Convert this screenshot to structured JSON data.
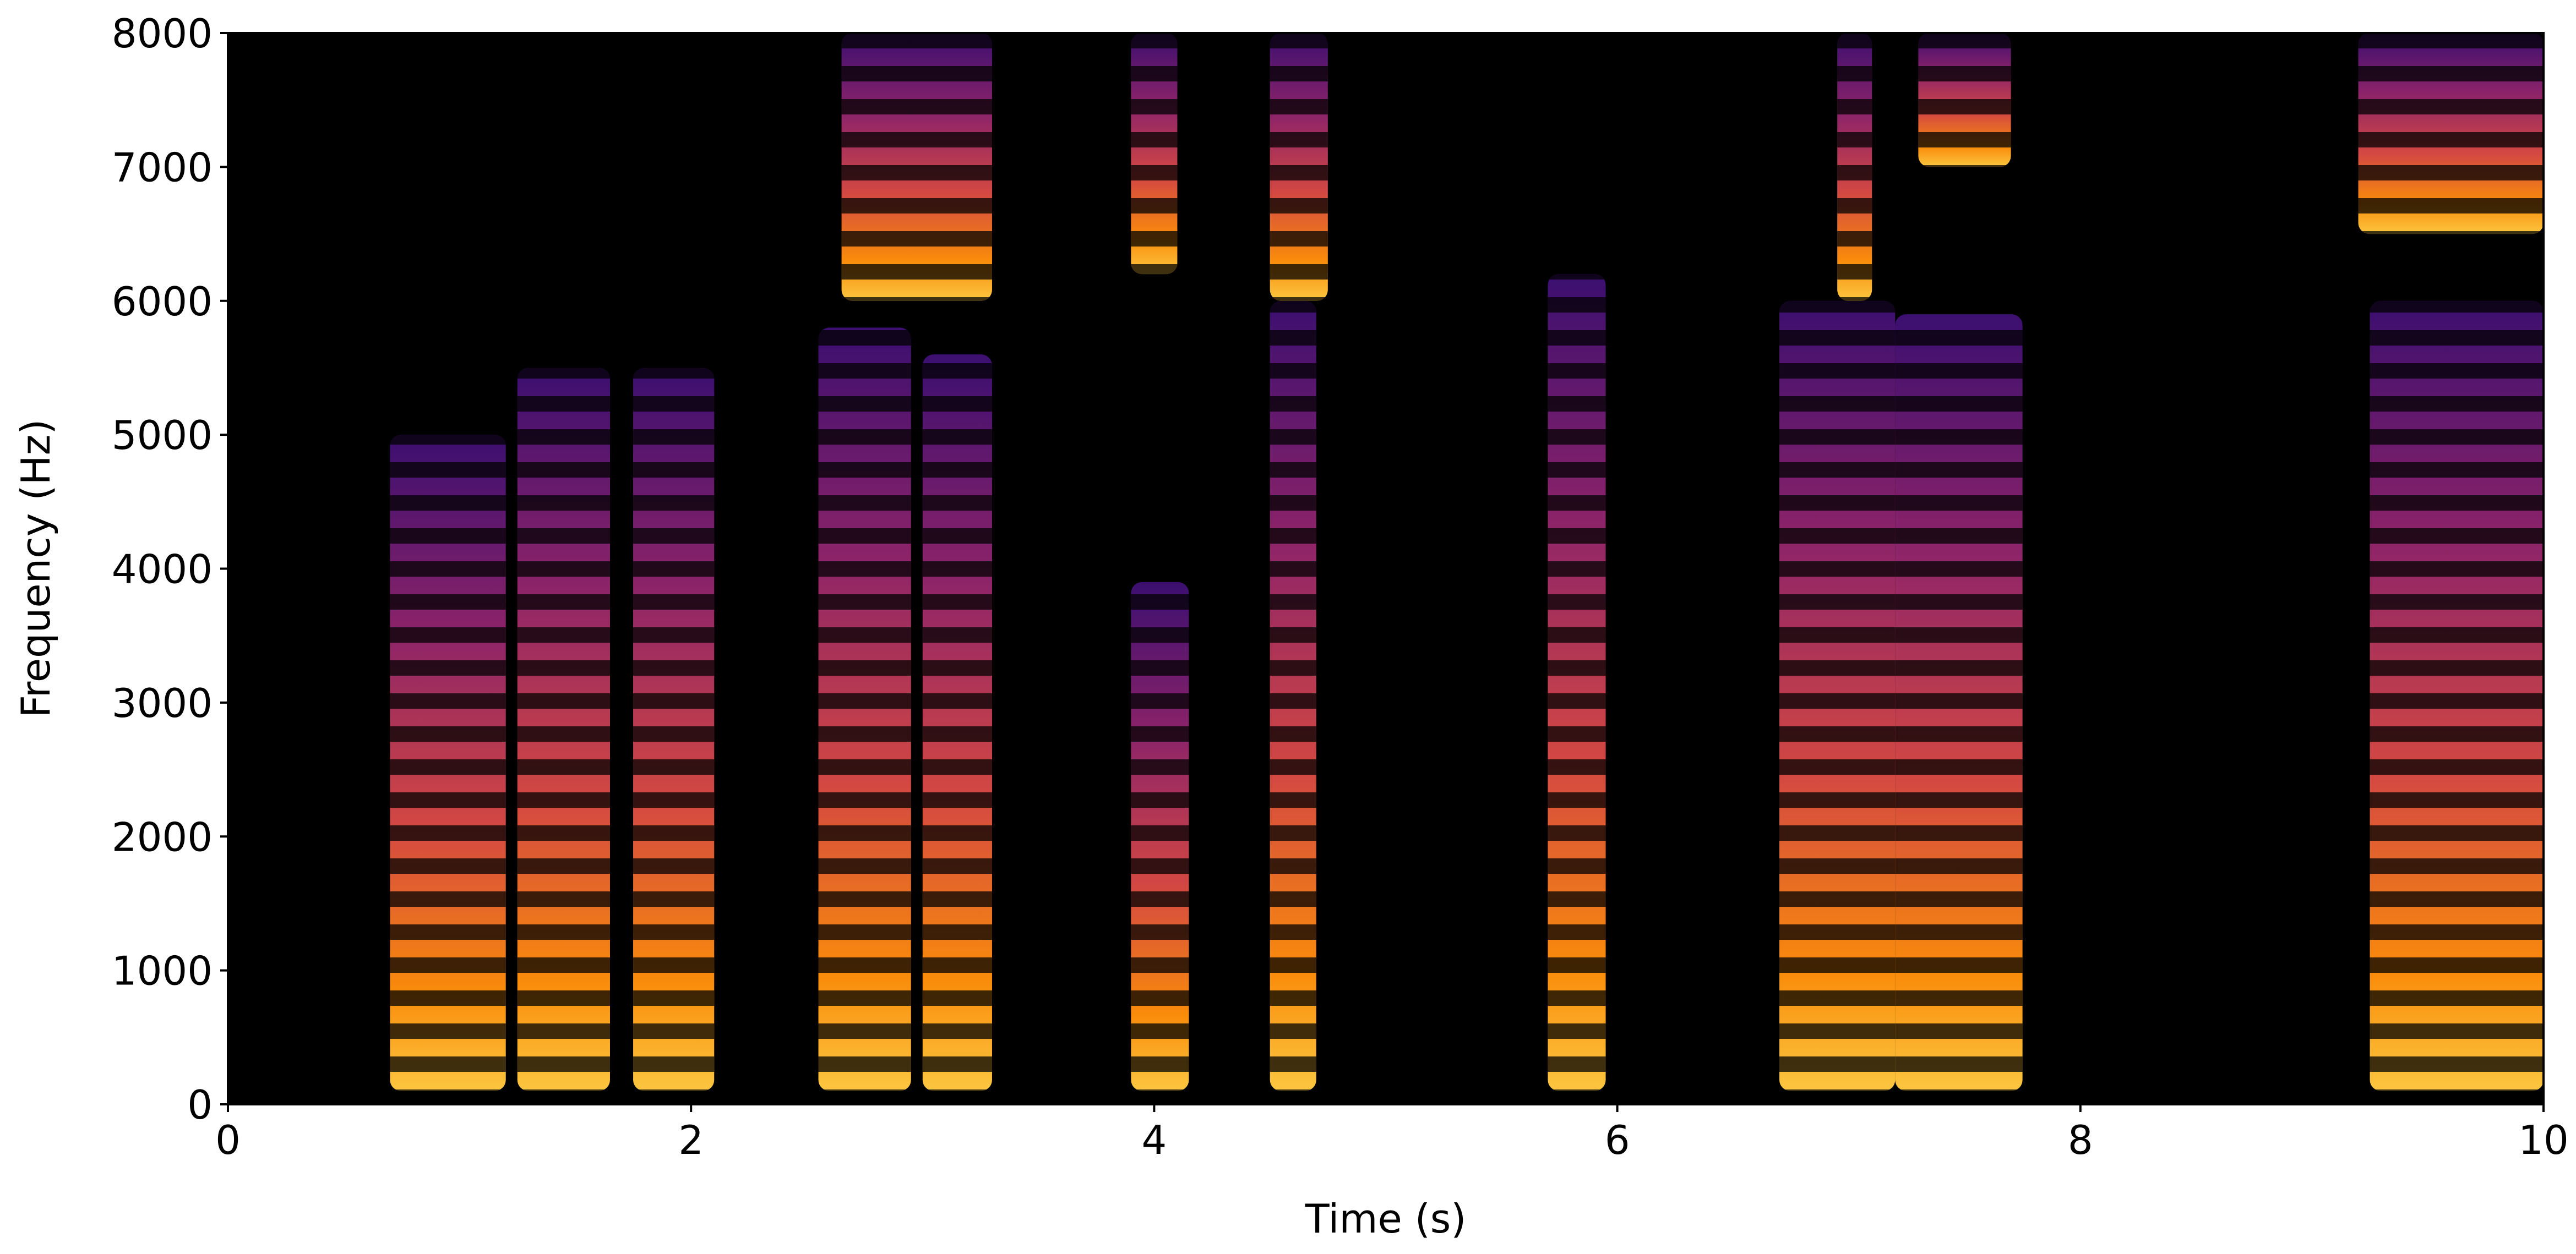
{
  "chart_data": {
    "type": "spectrogram",
    "xlabel": "Time (s)",
    "ylabel": "Frequency (Hz)",
    "xlim": [
      0,
      10
    ],
    "ylim": [
      0,
      8000
    ],
    "xticks": [
      0,
      2,
      4,
      6,
      8,
      10
    ],
    "yticks": [
      0,
      1000,
      2000,
      3000,
      4000,
      5000,
      6000,
      7000,
      8000
    ],
    "segments": [
      {
        "start": 0.7,
        "end": 1.2,
        "fmin": 100,
        "fmax": 5000
      },
      {
        "start": 1.25,
        "end": 1.65,
        "fmin": 100,
        "fmax": 5500
      },
      {
        "start": 1.75,
        "end": 2.1,
        "fmin": 100,
        "fmax": 5500
      },
      {
        "start": 2.55,
        "end": 2.95,
        "fmin": 100,
        "fmax": 5800
      },
      {
        "start": 3.0,
        "end": 3.3,
        "fmin": 100,
        "fmax": 5600
      },
      {
        "start": 3.9,
        "end": 4.15,
        "fmin": 100,
        "fmax": 3900
      },
      {
        "start": 4.5,
        "end": 4.7,
        "fmin": 100,
        "fmax": 6000
      },
      {
        "start": 5.7,
        "end": 5.95,
        "fmin": 100,
        "fmax": 6200
      },
      {
        "start": 6.7,
        "end": 7.2,
        "fmin": 100,
        "fmax": 6000
      },
      {
        "start": 7.2,
        "end": 7.75,
        "fmin": 100,
        "fmax": 5900
      },
      {
        "start": 9.25,
        "end": 10.0,
        "fmin": 100,
        "fmax": 6000
      },
      {
        "start": 2.65,
        "end": 3.3,
        "fmin": 6000,
        "fmax": 8000
      },
      {
        "start": 3.9,
        "end": 4.1,
        "fmin": 6200,
        "fmax": 8000
      },
      {
        "start": 4.5,
        "end": 4.75,
        "fmin": 6000,
        "fmax": 8000
      },
      {
        "start": 6.95,
        "end": 7.1,
        "fmin": 6000,
        "fmax": 8000
      },
      {
        "start": 7.3,
        "end": 7.7,
        "fmin": 7000,
        "fmax": 8000
      },
      {
        "start": 9.2,
        "end": 10.0,
        "fmin": 6500,
        "fmax": 8000
      }
    ]
  }
}
